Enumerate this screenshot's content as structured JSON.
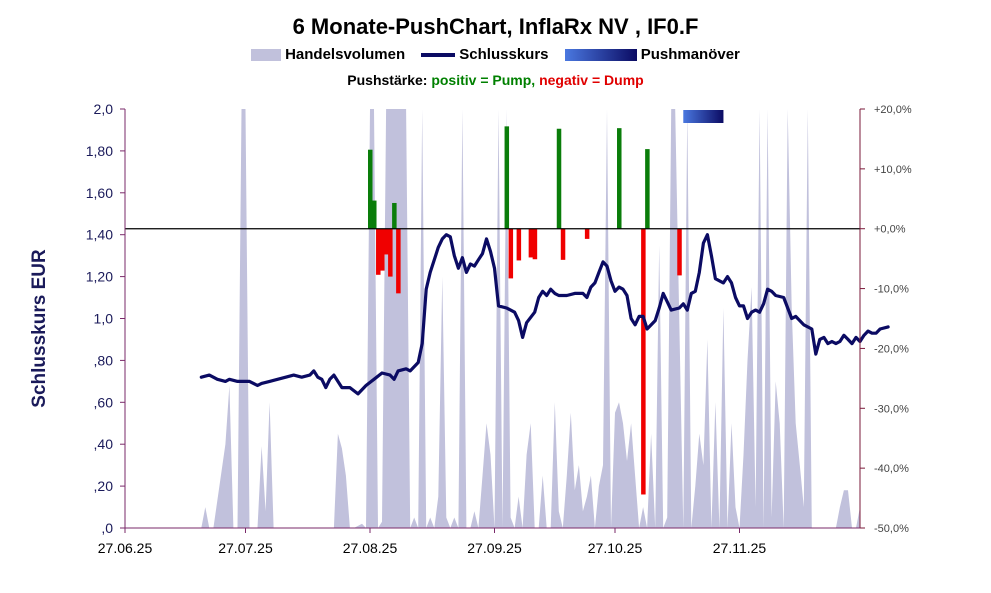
{
  "chart_data": {
    "type": "bar+line+area",
    "title": "6 Monate-PushChart, InflaRx NV , IF0.F",
    "legend": {
      "volume": "Handelsvolumen",
      "close": "Schlusskurs",
      "push_maneuver": "Pushmanöver"
    },
    "push_strength": {
      "label": "Pushstärke:",
      "positive": "positiv = Pump,",
      "negative": "negativ = Dump"
    },
    "ylabel": "Schlusskurs EUR",
    "ylim": [
      0,
      2.0
    ],
    "y2lim": [
      -50,
      20
    ],
    "yticks": [
      {
        "v": 0,
        "label": ",0"
      },
      {
        "v": 0.2,
        "label": ",20"
      },
      {
        "v": 0.4,
        "label": ",40"
      },
      {
        "v": 0.6,
        "label": ",60"
      },
      {
        "v": 0.8,
        "label": ",80"
      },
      {
        "v": 1.0,
        "label": "1,0"
      },
      {
        "v": 1.2,
        "label": "1,20"
      },
      {
        "v": 1.4,
        "label": "1,40"
      },
      {
        "v": 1.6,
        "label": "1,60"
      },
      {
        "v": 1.8,
        "label": "1,80"
      },
      {
        "v": 2.0,
        "label": "2,0"
      }
    ],
    "y2ticks": [
      {
        "v": 20,
        "label": "+20,0%"
      },
      {
        "v": 10,
        "label": "+10,0%"
      },
      {
        "v": 0,
        "label": "+0,0%"
      },
      {
        "v": -10,
        "label": "-10,0%"
      },
      {
        "v": -20,
        "label": "-20,0%"
      },
      {
        "v": -30,
        "label": "-30,0%"
      },
      {
        "v": -40,
        "label": "-40,0%"
      },
      {
        "v": -50,
        "label": "-50,0%"
      }
    ],
    "xrange": [
      0,
      183
    ],
    "xticks": [
      {
        "day": 0,
        "label": "27.06.25"
      },
      {
        "day": 30,
        "label": "27.07.25"
      },
      {
        "day": 61,
        "label": "27.08.25"
      },
      {
        "day": 92,
        "label": "27.09.25"
      },
      {
        "day": 122,
        "label": "27.10.25"
      },
      {
        "day": 153,
        "label": "27.11.25"
      }
    ],
    "push_maneuver_range": [
      139,
      149
    ],
    "close": [
      [
        19,
        0.72
      ],
      [
        21,
        0.73
      ],
      [
        23,
        0.71
      ],
      [
        25,
        0.7
      ],
      [
        26,
        0.71
      ],
      [
        28,
        0.7
      ],
      [
        31,
        0.7
      ],
      [
        33,
        0.68
      ],
      [
        34,
        0.69
      ],
      [
        36,
        0.7
      ],
      [
        38,
        0.71
      ],
      [
        40,
        0.72
      ],
      [
        42,
        0.73
      ],
      [
        44,
        0.72
      ],
      [
        46,
        0.73
      ],
      [
        47,
        0.75
      ],
      [
        48,
        0.72
      ],
      [
        49,
        0.71
      ],
      [
        50,
        0.67
      ],
      [
        51,
        0.71
      ],
      [
        52,
        0.73
      ],
      [
        54,
        0.67
      ],
      [
        56,
        0.67
      ],
      [
        58,
        0.64
      ],
      [
        60,
        0.68
      ],
      [
        62,
        0.71
      ],
      [
        64,
        0.74
      ],
      [
        66,
        0.73
      ],
      [
        67,
        0.71
      ],
      [
        68,
        0.75
      ],
      [
        70,
        0.76
      ],
      [
        71,
        0.75
      ],
      [
        73,
        0.79
      ],
      [
        74,
        0.88
      ],
      [
        75,
        1.14
      ],
      [
        76,
        1.22
      ],
      [
        77,
        1.28
      ],
      [
        78,
        1.34
      ],
      [
        79,
        1.38
      ],
      [
        80,
        1.4
      ],
      [
        81,
        1.39
      ],
      [
        82,
        1.3
      ],
      [
        83,
        1.24
      ],
      [
        84,
        1.29
      ],
      [
        85,
        1.22
      ],
      [
        86,
        1.26
      ],
      [
        87,
        1.25
      ],
      [
        88,
        1.28
      ],
      [
        89,
        1.31
      ],
      [
        90,
        1.38
      ],
      [
        91,
        1.32
      ],
      [
        92,
        1.24
      ],
      [
        93,
        1.06
      ],
      [
        95,
        1.05
      ],
      [
        97,
        1.03
      ],
      [
        98,
        0.99
      ],
      [
        99,
        0.91
      ],
      [
        100,
        0.98
      ],
      [
        102,
        1.03
      ],
      [
        103,
        1.1
      ],
      [
        104,
        1.13
      ],
      [
        105,
        1.11
      ],
      [
        106,
        1.14
      ],
      [
        107,
        1.12
      ],
      [
        108,
        1.11
      ],
      [
        110,
        1.11
      ],
      [
        112,
        1.12
      ],
      [
        114,
        1.12
      ],
      [
        115,
        1.1
      ],
      [
        116,
        1.15
      ],
      [
        117,
        1.17
      ],
      [
        118,
        1.22
      ],
      [
        119,
        1.27
      ],
      [
        120,
        1.25
      ],
      [
        121,
        1.18
      ],
      [
        122,
        1.13
      ],
      [
        123,
        1.15
      ],
      [
        124,
        1.14
      ],
      [
        125,
        1.11
      ],
      [
        126,
        1.0
      ],
      [
        127,
        0.97
      ],
      [
        128,
        1.01
      ],
      [
        129,
        1.01
      ],
      [
        130,
        0.95
      ],
      [
        132,
        0.99
      ],
      [
        133,
        1.05
      ],
      [
        134,
        1.12
      ],
      [
        135,
        1.08
      ],
      [
        136,
        1.04
      ],
      [
        138,
        1.05
      ],
      [
        139,
        1.07
      ],
      [
        140,
        1.04
      ],
      [
        141,
        1.12
      ],
      [
        142,
        1.13
      ],
      [
        143,
        1.22
      ],
      [
        144,
        1.36
      ],
      [
        145,
        1.4
      ],
      [
        146,
        1.3
      ],
      [
        147,
        1.19
      ],
      [
        148,
        1.18
      ],
      [
        149,
        1.17
      ],
      [
        150,
        1.2
      ],
      [
        151,
        1.17
      ],
      [
        152,
        1.1
      ],
      [
        153,
        1.06
      ],
      [
        154,
        1.06
      ],
      [
        155,
        1.0
      ],
      [
        156,
        1.03
      ],
      [
        157,
        1.04
      ],
      [
        158,
        1.03
      ],
      [
        159,
        1.07
      ],
      [
        160,
        1.14
      ],
      [
        161,
        1.13
      ],
      [
        162,
        1.11
      ],
      [
        164,
        1.1
      ],
      [
        166,
        1.0
      ],
      [
        167,
        1.01
      ],
      [
        169,
        0.97
      ],
      [
        171,
        0.95
      ],
      [
        172,
        0.83
      ],
      [
        173,
        0.9
      ],
      [
        174,
        0.91
      ],
      [
        175,
        0.88
      ],
      [
        176,
        0.89
      ],
      [
        177,
        0.88
      ],
      [
        178,
        0.89
      ],
      [
        179,
        0.92
      ],
      [
        180,
        0.9
      ],
      [
        181,
        0.88
      ],
      [
        182,
        0.91
      ],
      [
        183,
        0.89
      ],
      [
        184,
        0.92
      ],
      [
        185,
        0.94
      ],
      [
        186,
        0.93
      ],
      [
        187,
        0.93
      ],
      [
        188,
        0.95
      ],
      [
        190,
        0.96
      ]
    ],
    "push_strength_bars": [
      [
        61,
        13.2
      ],
      [
        62,
        4.7
      ],
      [
        63,
        -7.7
      ],
      [
        64,
        -7.0
      ],
      [
        65,
        -4.3
      ],
      [
        66,
        -8.0
      ],
      [
        67,
        4.3
      ],
      [
        68,
        -10.8
      ],
      [
        95,
        17.1
      ],
      [
        96,
        -8.3
      ],
      [
        98,
        -5.3
      ],
      [
        101,
        -4.8
      ],
      [
        102,
        -5.1
      ],
      [
        108,
        16.7
      ],
      [
        109,
        -5.2
      ],
      [
        115,
        -1.7
      ],
      [
        123,
        16.8
      ],
      [
        129,
        -44.4
      ],
      [
        130,
        13.3
      ],
      [
        138,
        -7.8
      ]
    ],
    "volume": [
      [
        0,
        0
      ],
      [
        19,
        0
      ],
      [
        20,
        0.1
      ],
      [
        21,
        0
      ],
      [
        22,
        0
      ],
      [
        25,
        0.4
      ],
      [
        26,
        0.68
      ],
      [
        27,
        0
      ],
      [
        28,
        0
      ],
      [
        29,
        2.0
      ],
      [
        30,
        2.0
      ],
      [
        31,
        0
      ],
      [
        33,
        0
      ],
      [
        34,
        0.39
      ],
      [
        35,
        0.08
      ],
      [
        36,
        0.6
      ],
      [
        37,
        0
      ],
      [
        51,
        0
      ],
      [
        52,
        0
      ],
      [
        53,
        0.45
      ],
      [
        54,
        0.38
      ],
      [
        55,
        0.25
      ],
      [
        56,
        0
      ],
      [
        57,
        0
      ],
      [
        59,
        0.02
      ],
      [
        60,
        0
      ],
      [
        61,
        2.0
      ],
      [
        62,
        2.0
      ],
      [
        63,
        0
      ],
      [
        64,
        0.03
      ],
      [
        65,
        2.0
      ],
      [
        70,
        2.0
      ],
      [
        71,
        0
      ],
      [
        72,
        0.05
      ],
      [
        73,
        0
      ],
      [
        74,
        2.0
      ],
      [
        75,
        0
      ],
      [
        76,
        0.05
      ],
      [
        77,
        0
      ],
      [
        78,
        0.15
      ],
      [
        79,
        1.2
      ],
      [
        80,
        0.05
      ],
      [
        81,
        0
      ],
      [
        82,
        0.05
      ],
      [
        83,
        0
      ],
      [
        84,
        2.0
      ],
      [
        85,
        0
      ],
      [
        86,
        0
      ],
      [
        87,
        0.08
      ],
      [
        88,
        0
      ],
      [
        89,
        0.25
      ],
      [
        90,
        0.5
      ],
      [
        91,
        0.35
      ],
      [
        92,
        0
      ],
      [
        93,
        2.0
      ],
      [
        94,
        0
      ],
      [
        95,
        2.0
      ],
      [
        96,
        0.05
      ],
      [
        97,
        0
      ],
      [
        98,
        0.15
      ],
      [
        99,
        0
      ],
      [
        100,
        0.35
      ],
      [
        101,
        0.5
      ],
      [
        102,
        0
      ],
      [
        103,
        0
      ],
      [
        104,
        0.25
      ],
      [
        105,
        0
      ],
      [
        106,
        0
      ],
      [
        107,
        0.6
      ],
      [
        108,
        0.08
      ],
      [
        109,
        0
      ],
      [
        110,
        0.25
      ],
      [
        111,
        0.55
      ],
      [
        112,
        0.18
      ],
      [
        113,
        0.3
      ],
      [
        114,
        0.08
      ],
      [
        115,
        0.15
      ],
      [
        116,
        0.25
      ],
      [
        117,
        0
      ],
      [
        118,
        0.2
      ],
      [
        119,
        0.3
      ],
      [
        120,
        2.0
      ],
      [
        121,
        0
      ],
      [
        122,
        0.55
      ],
      [
        123,
        0.6
      ],
      [
        124,
        0.5
      ],
      [
        125,
        0.32
      ],
      [
        126,
        0.5
      ],
      [
        127,
        0.25
      ],
      [
        128,
        0
      ],
      [
        129,
        0.1
      ],
      [
        130,
        0
      ],
      [
        131,
        0.45
      ],
      [
        132,
        0
      ],
      [
        133,
        1.35
      ],
      [
        134,
        0
      ],
      [
        135,
        0.05
      ],
      [
        136,
        2.0
      ],
      [
        137,
        2.0
      ],
      [
        139,
        0
      ],
      [
        140,
        2.0
      ],
      [
        141,
        0
      ],
      [
        142,
        0.2
      ],
      [
        143,
        0.45
      ],
      [
        144,
        0.3
      ],
      [
        145,
        0.9
      ],
      [
        146,
        0
      ],
      [
        147,
        0.6
      ],
      [
        148,
        0
      ],
      [
        149,
        1.05
      ],
      [
        150,
        0
      ],
      [
        151,
        0.5
      ],
      [
        152,
        0.1
      ],
      [
        153,
        0
      ],
      [
        154,
        0.35
      ],
      [
        155,
        0.8
      ],
      [
        156,
        1.15
      ],
      [
        157,
        0.1
      ],
      [
        158,
        2.0
      ],
      [
        159,
        0
      ],
      [
        160,
        2.0
      ],
      [
        161,
        0.05
      ],
      [
        162,
        0.7
      ],
      [
        163,
        0.5
      ],
      [
        164,
        0
      ],
      [
        165,
        2.0
      ],
      [
        166,
        1.05
      ],
      [
        167,
        0.5
      ],
      [
        168,
        0.3
      ],
      [
        169,
        0.1
      ],
      [
        170,
        2.0
      ],
      [
        171,
        0
      ],
      [
        172,
        0
      ],
      [
        173,
        0
      ],
      [
        174,
        0
      ],
      [
        175,
        0
      ],
      [
        176,
        0
      ],
      [
        177,
        0
      ],
      [
        178,
        0.1
      ],
      [
        179,
        0.18
      ],
      [
        180,
        0.18
      ],
      [
        181,
        0
      ],
      [
        182,
        0
      ],
      [
        183,
        0.1
      ],
      [
        184,
        0.05
      ],
      [
        185,
        0
      ],
      [
        186,
        0.55
      ],
      [
        187,
        0
      ],
      [
        190,
        0
      ]
    ]
  }
}
